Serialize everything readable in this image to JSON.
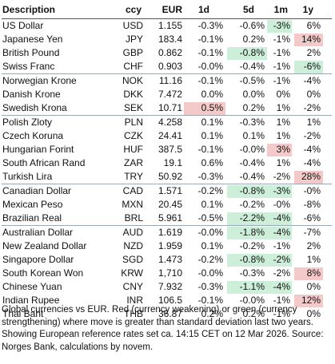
{
  "caption": "Global currencies vs EUR. Red (currency weakening) or green (currency strengthening) where move is greater than standard deviation last two years. Showing European reference rates set ca. 14:15 CET on 12 Mar 2026. Source: Norges Bank, calculations by novem.",
  "chart_data": {
    "type": "table",
    "columns": [
      "Description",
      "ccy",
      "EUR",
      "1d",
      "5d",
      "1m",
      "1y"
    ],
    "highlight_colors": {
      "weakening": "#f3c9c9",
      "strengthening": "#cdeed8"
    },
    "groups": [
      [
        {
          "name": "US Dollar",
          "ccy": "USD",
          "eur": "1.155",
          "d1": "-0.3%",
          "d5": "-0.6%",
          "m1": "-3%",
          "y1": "6%",
          "hl": {
            "m1": "green"
          }
        },
        {
          "name": "Japanese Yen",
          "ccy": "JPY",
          "eur": "183.4",
          "d1": "-0.1%",
          "d5": "0.2%",
          "m1": "-1%",
          "y1": "14%",
          "hl": {
            "y1": "red"
          }
        },
        {
          "name": "British Pound",
          "ccy": "GBP",
          "eur": "0.862",
          "d1": "-0.1%",
          "d5": "-0.8%",
          "m1": "-1%",
          "y1": "2%",
          "hl": {
            "d5": "green"
          }
        },
        {
          "name": "Swiss Franc",
          "ccy": "CHF",
          "eur": "0.903",
          "d1": "-0.0%",
          "d5": "-0.4%",
          "m1": "-1%",
          "y1": "-6%",
          "hl": {
            "y1": "green"
          }
        }
      ],
      [
        {
          "name": "Norwegian Krone",
          "ccy": "NOK",
          "eur": "11.16",
          "d1": "-0.1%",
          "d5": "-0.5%",
          "m1": "-1%",
          "y1": "-4%",
          "hl": {}
        },
        {
          "name": "Danish Krone",
          "ccy": "DKK",
          "eur": "7.472",
          "d1": "0.0%",
          "d5": "0.0%",
          "m1": "0%",
          "y1": "0%",
          "hl": {}
        },
        {
          "name": "Swedish Krona",
          "ccy": "SEK",
          "eur": "10.71",
          "d1": "0.5%",
          "d5": "0.2%",
          "m1": "1%",
          "y1": "-2%",
          "hl": {
            "d1": "red"
          }
        }
      ],
      [
        {
          "name": "Polish Zloty",
          "ccy": "PLN",
          "eur": "4.258",
          "d1": "0.1%",
          "d5": "-0.3%",
          "m1": "1%",
          "y1": "1%",
          "hl": {}
        },
        {
          "name": "Czech Koruna",
          "ccy": "CZK",
          "eur": "24.41",
          "d1": "0.1%",
          "d5": "0.1%",
          "m1": "1%",
          "y1": "-2%",
          "hl": {}
        },
        {
          "name": "Hungarian Forint",
          "ccy": "HUF",
          "eur": "387.5",
          "d1": "-0.1%",
          "d5": "-0.0%",
          "m1": "3%",
          "y1": "-4%",
          "hl": {
            "m1": "red"
          }
        },
        {
          "name": "South African Rand",
          "ccy": "ZAR",
          "eur": "19.1",
          "d1": "0.6%",
          "d5": "-0.4%",
          "m1": "1%",
          "y1": "-4%",
          "hl": {}
        },
        {
          "name": "Turkish Lira",
          "ccy": "TRY",
          "eur": "50.92",
          "d1": "-0.3%",
          "d5": "-0.4%",
          "m1": "-2%",
          "y1": "28%",
          "hl": {
            "y1": "red"
          }
        }
      ],
      [
        {
          "name": "Canadian Dollar",
          "ccy": "CAD",
          "eur": "1.571",
          "d1": "-0.2%",
          "d5": "-0.8%",
          "m1": "-3%",
          "y1": "-0%",
          "hl": {
            "d5": "green",
            "m1": "green"
          }
        },
        {
          "name": "Mexican Peso",
          "ccy": "MXN",
          "eur": "20.45",
          "d1": "0.1%",
          "d5": "-0.2%",
          "m1": "-0%",
          "y1": "-8%",
          "hl": {}
        },
        {
          "name": "Brazilian Real",
          "ccy": "BRL",
          "eur": "5.961",
          "d1": "-0.5%",
          "d5": "-2.2%",
          "m1": "-4%",
          "y1": "-6%",
          "hl": {
            "d5": "green",
            "m1": "green"
          }
        }
      ],
      [
        {
          "name": "Australian Dollar",
          "ccy": "AUD",
          "eur": "1.619",
          "d1": "-0.0%",
          "d5": "-1.8%",
          "m1": "-4%",
          "y1": "-7%",
          "hl": {
            "d5": "green",
            "m1": "green"
          }
        },
        {
          "name": "New Zealand Dollar",
          "ccy": "NZD",
          "eur": "1.959",
          "d1": "0.1%",
          "d5": "-0.2%",
          "m1": "-1%",
          "y1": "2%",
          "hl": {}
        },
        {
          "name": "Singapore Dollar",
          "ccy": "SGD",
          "eur": "1.473",
          "d1": "-0.2%",
          "d5": "-0.8%",
          "m1": "-2%",
          "y1": "1%",
          "hl": {
            "d5": "green",
            "m1": "green"
          }
        },
        {
          "name": "South Korean Won",
          "ccy": "KRW",
          "eur": "1,710",
          "d1": "-0.0%",
          "d5": "-0.3%",
          "m1": "-2%",
          "y1": "8%",
          "hl": {
            "y1": "red"
          }
        },
        {
          "name": "Chinese Yuan",
          "ccy": "CNY",
          "eur": "7.932",
          "d1": "-0.3%",
          "d5": "-1.1%",
          "m1": "-4%",
          "y1": "0%",
          "hl": {
            "d5": "green",
            "m1": "green"
          }
        },
        {
          "name": "Indian Rupee",
          "ccy": "INR",
          "eur": "106.5",
          "d1": "-0.1%",
          "d5": "-0.0%",
          "m1": "-1%",
          "y1": "12%",
          "hl": {
            "y1": "red"
          }
        },
        {
          "name": "Thai Baht",
          "ccy": "THB",
          "eur": "36.87",
          "d1": "0.2%",
          "d5": "0.2%",
          "m1": "-1%",
          "y1": "0%",
          "hl": {}
        }
      ]
    ]
  }
}
